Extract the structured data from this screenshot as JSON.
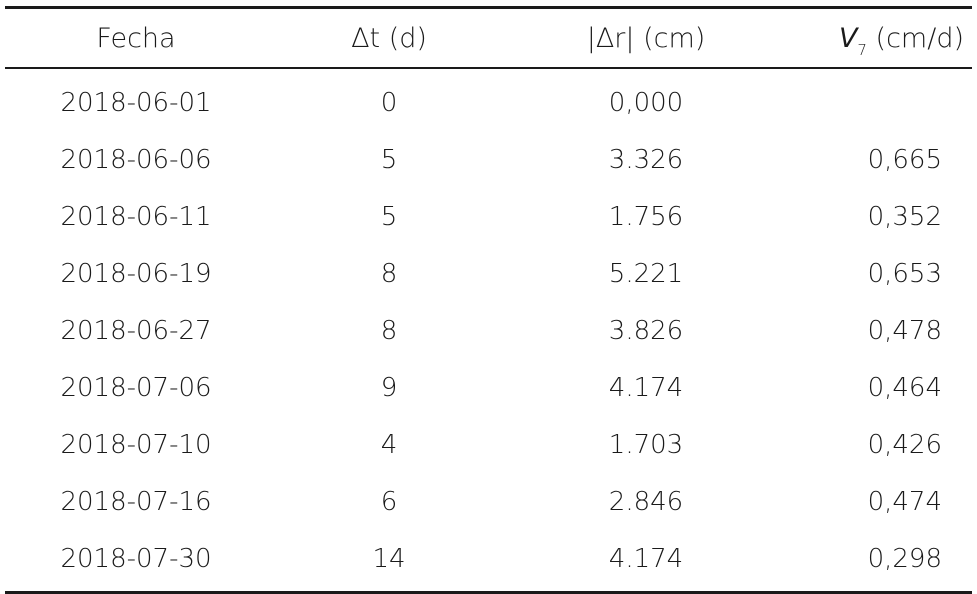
{
  "table": {
    "headers": {
      "fecha": "Fecha",
      "dt": "Δt (d)",
      "dr": "|Δr| (cm)",
      "v_symbol": "V",
      "v_sub": "7",
      "v_unit": " (cm/d)"
    },
    "rows": [
      {
        "fecha": "2018-06-01",
        "dt": "0",
        "dr": "0,000",
        "v": ""
      },
      {
        "fecha": "2018-06-06",
        "dt": "5",
        "dr": "3.326",
        "v": "0,665"
      },
      {
        "fecha": "2018-06-11",
        "dt": "5",
        "dr": "1.756",
        "v": "0,352"
      },
      {
        "fecha": "2018-06-19",
        "dt": "8",
        "dr": "5.221",
        "v": "0,653"
      },
      {
        "fecha": "2018-06-27",
        "dt": "8",
        "dr": "3.826",
        "v": "0,478"
      },
      {
        "fecha": "2018-07-06",
        "dt": "9",
        "dr": "4.174",
        "v": "0,464"
      },
      {
        "fecha": "2018-07-10",
        "dt": "4",
        "dr": "1.703",
        "v": "0,426"
      },
      {
        "fecha": "2018-07-16",
        "dt": "6",
        "dr": "2.846",
        "v": "0,474"
      },
      {
        "fecha": "2018-07-30",
        "dt": "14",
        "dr": "4.174",
        "v": "0,298"
      }
    ]
  }
}
